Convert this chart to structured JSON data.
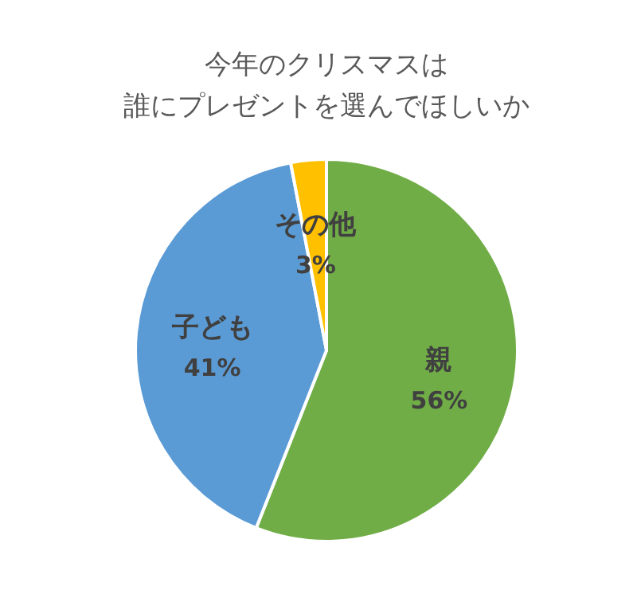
{
  "chart_data": {
    "type": "pie",
    "title": "今年のクリスマスは誰にプレゼントを選んでほしいか",
    "categories": [
      "親",
      "子ども",
      "その他"
    ],
    "values": [
      56,
      41,
      3
    ],
    "value_labels": [
      "56%",
      "41%",
      "3%"
    ],
    "colors": [
      "#70ad47",
      "#5b9bd5",
      "#ffc000"
    ]
  }
}
